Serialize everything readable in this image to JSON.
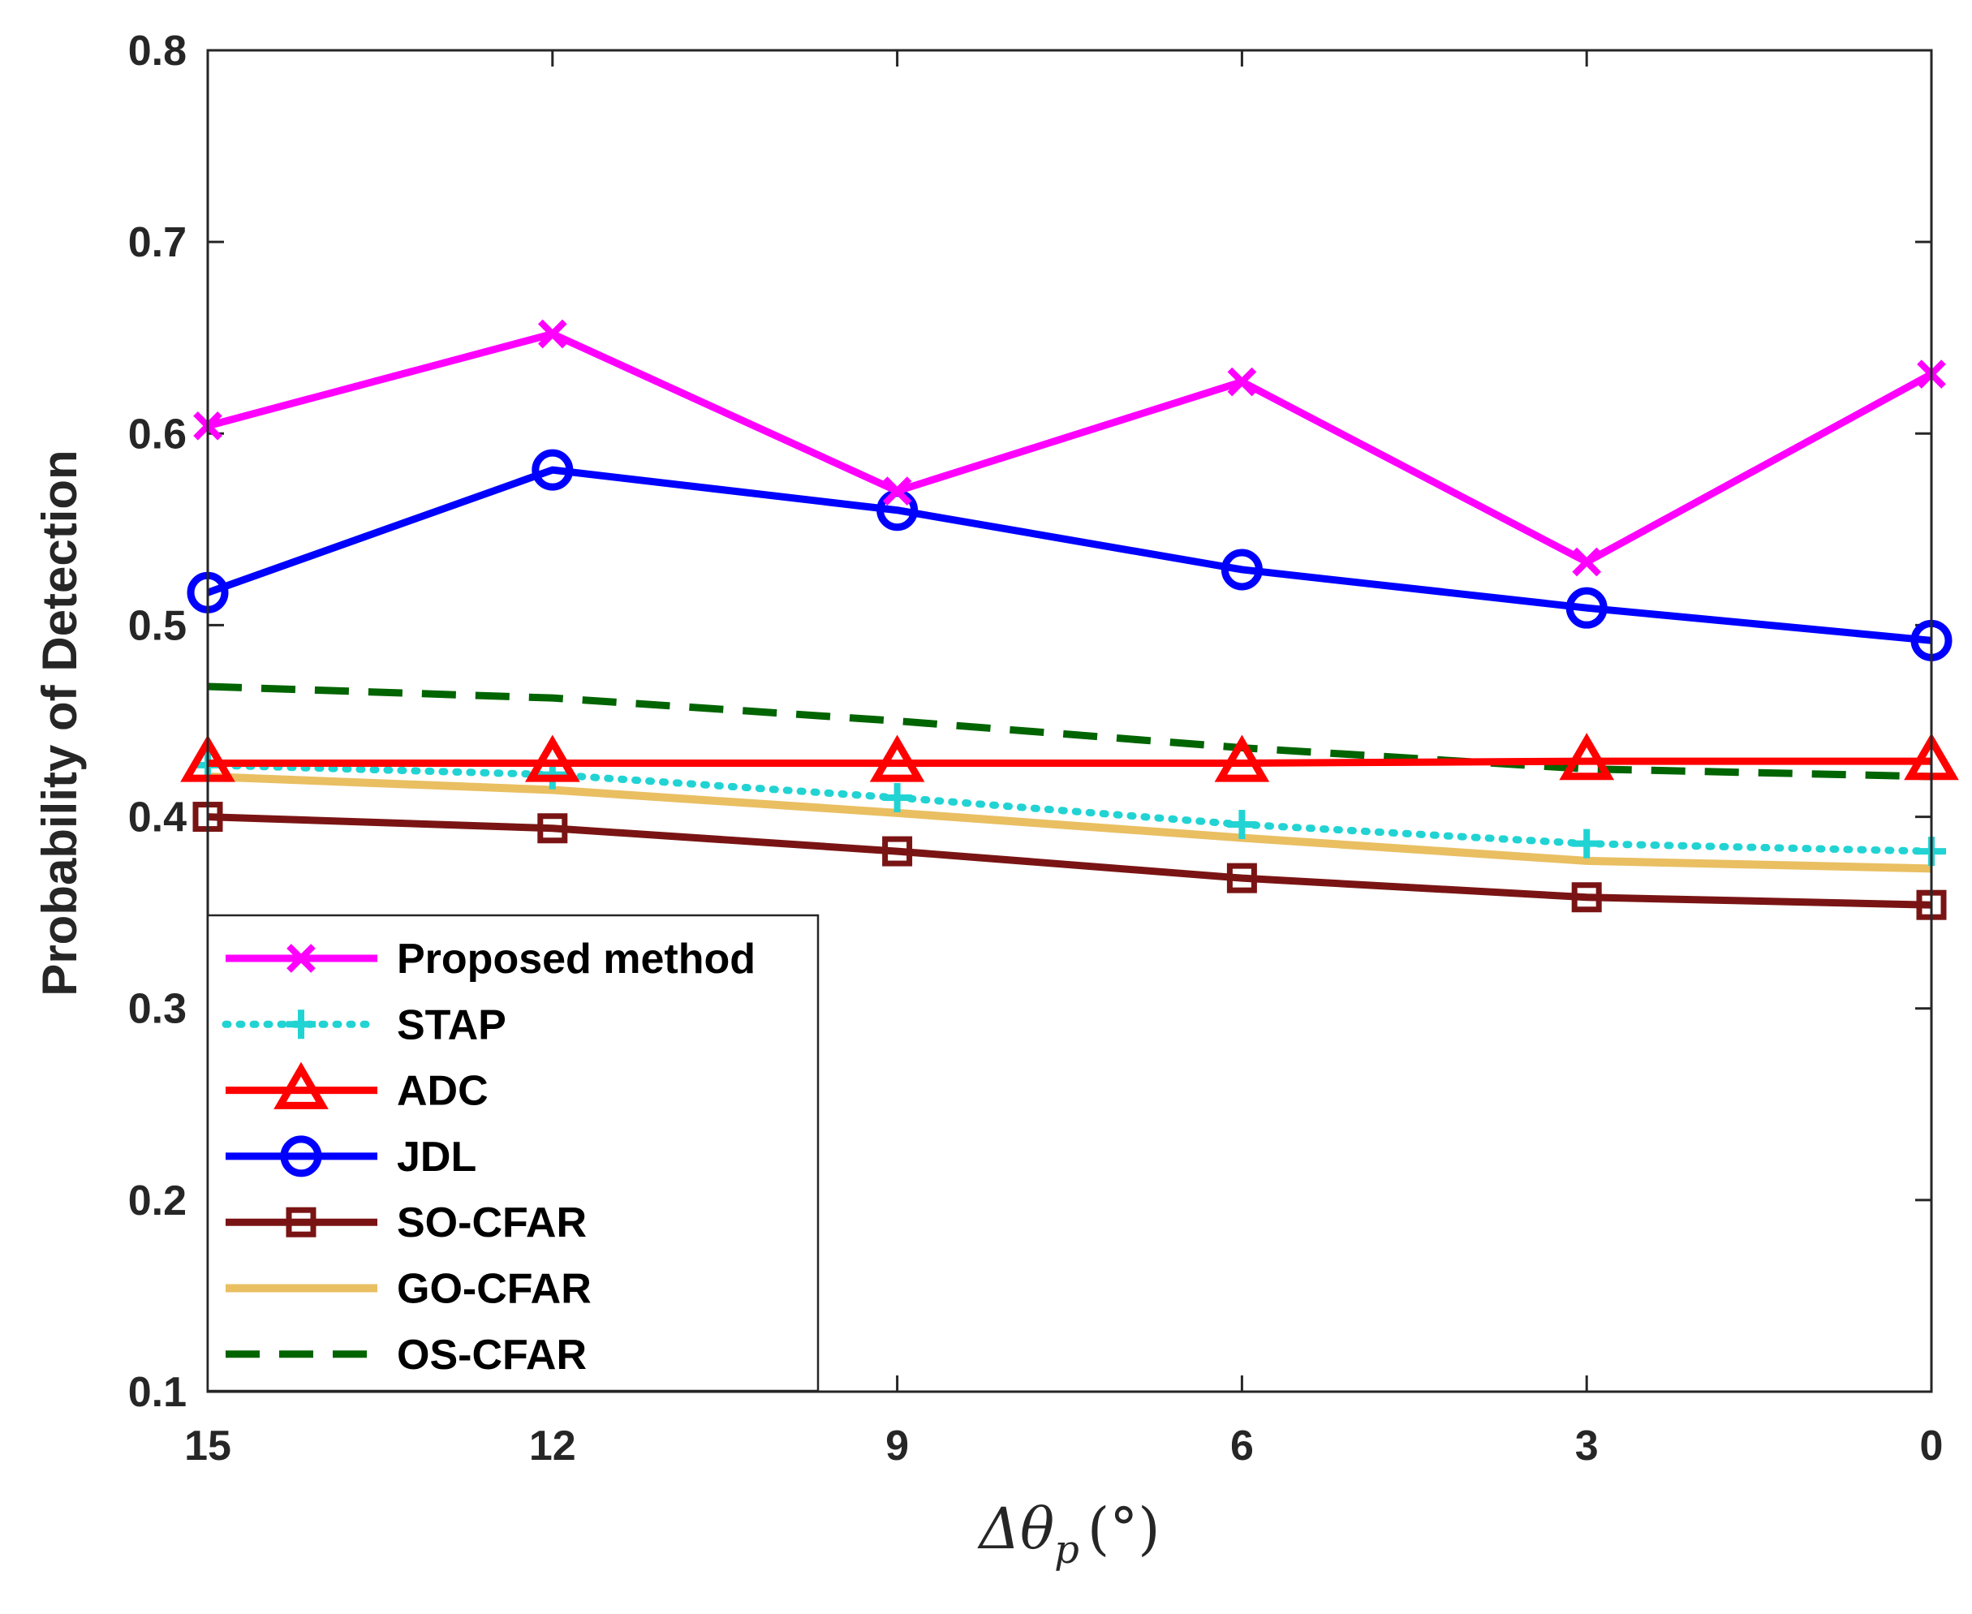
{
  "chart_data": {
    "type": "line",
    "title": "",
    "xlabel": "Δθ",
    "xlabel_subscript": "p",
    "xlabel_unit": "(°)",
    "ylabel": "Probability of Detection",
    "x": [
      15,
      12,
      9,
      6,
      3,
      0
    ],
    "xlim": [
      15,
      0
    ],
    "ylim": [
      0.1,
      0.8
    ],
    "xticks": [
      "15",
      "12",
      "9",
      "6",
      "3",
      "0"
    ],
    "yticks": [
      "0.1",
      "0.2",
      "0.3",
      "0.4",
      "0.5",
      "0.6",
      "0.7",
      "0.8"
    ],
    "legend_position": "bottom-left",
    "series": [
      {
        "name": "Proposed method",
        "color": "#ff00ff",
        "marker": "x",
        "dash": "solid",
        "values": [
          0.604,
          0.652,
          0.57,
          0.627,
          0.533,
          0.631
        ]
      },
      {
        "name": "STAP",
        "color": "#22d3d3",
        "marker": "plus",
        "dash": "dotted",
        "values": [
          0.427,
          0.422,
          0.41,
          0.396,
          0.386,
          0.382
        ]
      },
      {
        "name": "ADC",
        "color": "#ff0000",
        "marker": "triangle",
        "dash": "solid",
        "values": [
          0.428,
          0.428,
          0.428,
          0.428,
          0.429,
          0.429
        ]
      },
      {
        "name": "JDL",
        "color": "#0000ff",
        "marker": "circle",
        "dash": "solid",
        "values": [
          0.517,
          0.581,
          0.56,
          0.529,
          0.509,
          0.492
        ]
      },
      {
        "name": "SO-CFAR",
        "color": "#7a1414",
        "marker": "square",
        "dash": "solid",
        "values": [
          0.4,
          0.394,
          0.382,
          0.368,
          0.358,
          0.354
        ]
      },
      {
        "name": "GO-CFAR",
        "color": "#e9bf62",
        "marker": "none",
        "dash": "solid",
        "values": [
          0.421,
          0.414,
          0.402,
          0.389,
          0.377,
          0.373
        ]
      },
      {
        "name": "OS-CFAR",
        "color": "#006400",
        "marker": "none",
        "dash": "dashed",
        "values": [
          0.468,
          0.462,
          0.45,
          0.436,
          0.425,
          0.421
        ]
      }
    ]
  }
}
